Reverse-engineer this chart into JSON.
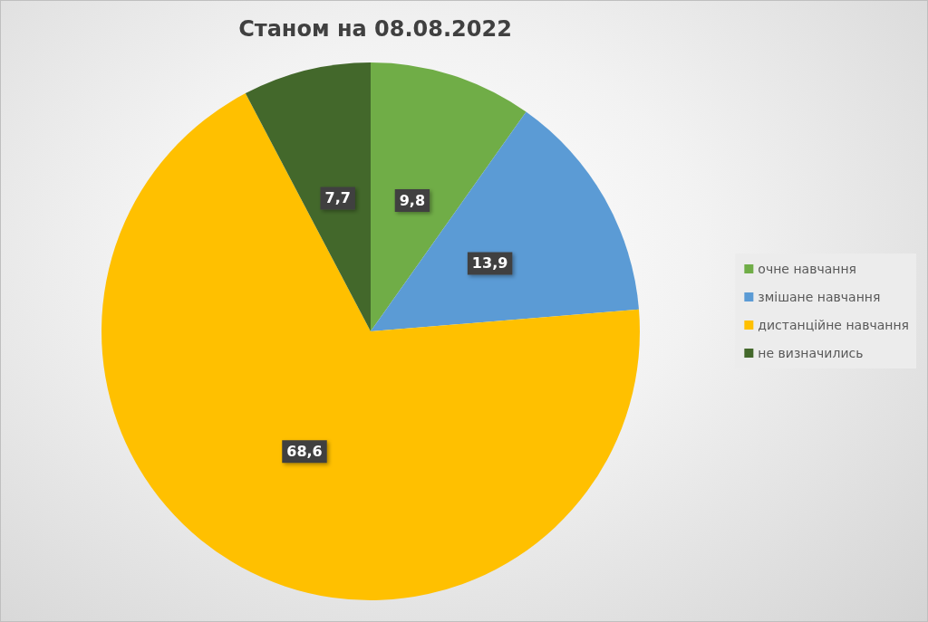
{
  "chart_data": {
    "type": "pie",
    "title": "Станом на 08.08.2022",
    "categories": [
      "очне навчання",
      "змішане навчання",
      "дистанційне навчання",
      "не визначились"
    ],
    "values": [
      9.8,
      13.9,
      68.6,
      7.7
    ],
    "colors": [
      "#70ad47",
      "#5b9bd5",
      "#ffc000",
      "#43682b"
    ],
    "value_labels": [
      "9,8",
      "13,9",
      "68,6",
      "7,7"
    ],
    "legend": "right"
  }
}
